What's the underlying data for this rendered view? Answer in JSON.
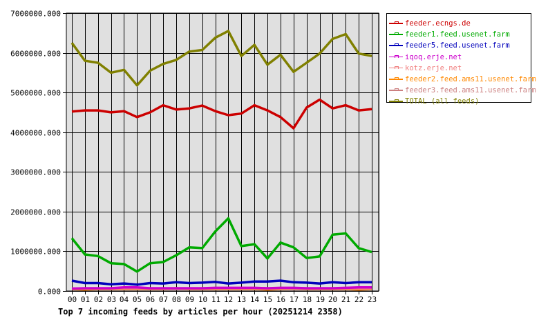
{
  "chart_data": {
    "type": "line",
    "title": "Top 7 incoming feeds by articles per hour (20251214 2358)",
    "xlabel": "",
    "ylabel": "",
    "categories": [
      "00",
      "01",
      "02",
      "03",
      "04",
      "05",
      "06",
      "07",
      "08",
      "09",
      "10",
      "11",
      "12",
      "13",
      "14",
      "15",
      "16",
      "17",
      "18",
      "19",
      "20",
      "21",
      "22",
      "23"
    ],
    "yticks": [
      "0.000",
      "1000000.000",
      "2000000.000",
      "3000000.000",
      "4000000.000",
      "5000000.000",
      "6000000.000",
      "7000000.000"
    ],
    "ylim": [
      0,
      7000000
    ],
    "grid": true,
    "legend_position": "right",
    "series": [
      {
        "name": "feeder.ecngs.de",
        "color": "#cc0000",
        "values": [
          4520000,
          4550000,
          4550000,
          4500000,
          4530000,
          4380000,
          4500000,
          4680000,
          4570000,
          4600000,
          4670000,
          4530000,
          4430000,
          4470000,
          4680000,
          4550000,
          4380000,
          4100000,
          4620000,
          4820000,
          4600000,
          4680000,
          4550000,
          4580000
        ]
      },
      {
        "name": "feeder1.feed.usenet.farm",
        "color": "#00aa00",
        "values": [
          1330000,
          920000,
          880000,
          700000,
          680000,
          490000,
          700000,
          730000,
          900000,
          1100000,
          1080000,
          1500000,
          1830000,
          1130000,
          1180000,
          820000,
          1220000,
          1100000,
          830000,
          870000,
          1420000,
          1450000,
          1080000,
          980000
        ]
      },
      {
        "name": "feeder5.feed.usenet.farm",
        "color": "#0000bb",
        "values": [
          260000,
          200000,
          200000,
          170000,
          190000,
          160000,
          200000,
          190000,
          220000,
          200000,
          210000,
          230000,
          190000,
          210000,
          240000,
          240000,
          260000,
          220000,
          210000,
          190000,
          220000,
          200000,
          220000,
          220000
        ]
      },
      {
        "name": "iqoq.erje.net",
        "color": "#cc00cc",
        "values": [
          60000,
          70000,
          70000,
          70000,
          90000,
          90000,
          70000,
          70000,
          70000,
          70000,
          70000,
          80000,
          80000,
          80000,
          80000,
          70000,
          80000,
          80000,
          70000,
          70000,
          70000,
          80000,
          90000,
          90000
        ]
      },
      {
        "name": "kotz.erje.net",
        "color": "#f08080",
        "values": [
          60000,
          60000,
          60000,
          60000,
          60000,
          60000,
          60000,
          60000,
          60000,
          60000,
          60000,
          60000,
          60000,
          60000,
          60000,
          60000,
          60000,
          60000,
          60000,
          60000,
          60000,
          60000,
          60000,
          60000
        ]
      },
      {
        "name": "feeder2.feed.ams11.usenet.farm",
        "color": "#ff8800",
        "values": [
          50000,
          40000,
          50000,
          50000,
          50000,
          50000,
          50000,
          50000,
          70000,
          50000,
          50000,
          50000,
          50000,
          50000,
          50000,
          40000,
          50000,
          60000,
          50000,
          50000,
          50000,
          50000,
          40000,
          50000
        ]
      },
      {
        "name": "feeder3.feed.ams11.usenet.farm",
        "color": "#cc8080",
        "values": [
          50000,
          50000,
          50000,
          50000,
          50000,
          50000,
          50000,
          50000,
          50000,
          50000,
          50000,
          50000,
          50000,
          50000,
          50000,
          50000,
          50000,
          50000,
          50000,
          50000,
          50000,
          50000,
          50000,
          50000
        ]
      },
      {
        "name": "TOTAL (all feeds)",
        "color": "#808000",
        "values": [
          6250000,
          5800000,
          5750000,
          5500000,
          5570000,
          5180000,
          5550000,
          5720000,
          5820000,
          6030000,
          6070000,
          6380000,
          6550000,
          5920000,
          6200000,
          5700000,
          5950000,
          5520000,
          5750000,
          5980000,
          6350000,
          6470000,
          5980000,
          5920000
        ]
      }
    ]
  },
  "legend": {
    "items": [
      {
        "label": "feeder.ecngs.de",
        "color": "#cc0000"
      },
      {
        "label": "feeder1.feed.usenet.farm",
        "color": "#00aa00"
      },
      {
        "label": "feeder5.feed.usenet.farm",
        "color": "#0000bb"
      },
      {
        "label": "iqoq.erje.net",
        "color": "#cc00cc"
      },
      {
        "label": "kotz.erje.net",
        "color": "#f08080"
      },
      {
        "label": "feeder2.feed.ams11.usenet.farm",
        "color": "#ff8800"
      },
      {
        "label": "feeder3.feed.ams11.usenet.farm",
        "color": "#cc8080"
      },
      {
        "label": "TOTAL (all feeds)",
        "color": "#808000"
      }
    ]
  }
}
